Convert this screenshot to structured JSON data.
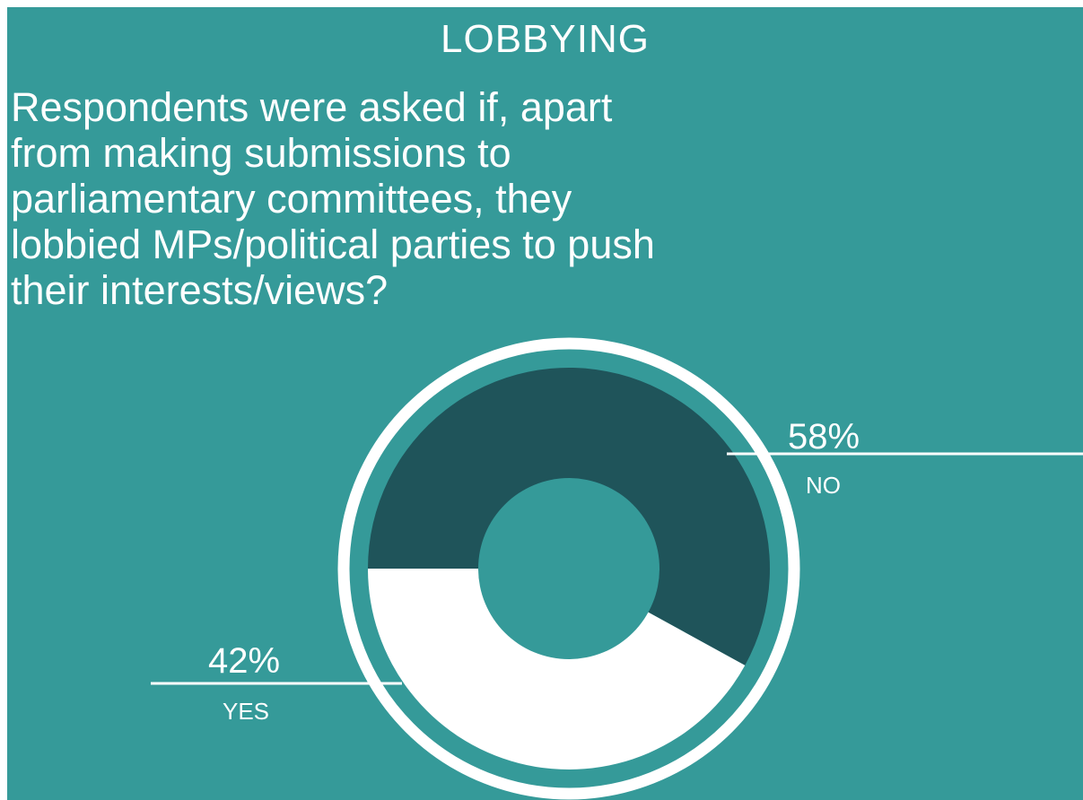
{
  "title": "LOBBYING",
  "question": "Respondents were asked if, apart from making submissions to parliamentary committees, they lobbied MPs/political parties to push their interests/views?",
  "colors": {
    "background": "#359a99",
    "no": "#1f545a",
    "yes": "#ffffff",
    "ring": "#ffffff",
    "text": "#ffffff"
  },
  "chart_data": {
    "type": "pie",
    "variant": "donut",
    "title": "LOBBYING",
    "slices": [
      {
        "label": "NO",
        "value": 58,
        "display": "58%",
        "color": "#1f545a"
      },
      {
        "label": "YES",
        "value": 42,
        "display": "42%",
        "color": "#ffffff"
      }
    ]
  }
}
